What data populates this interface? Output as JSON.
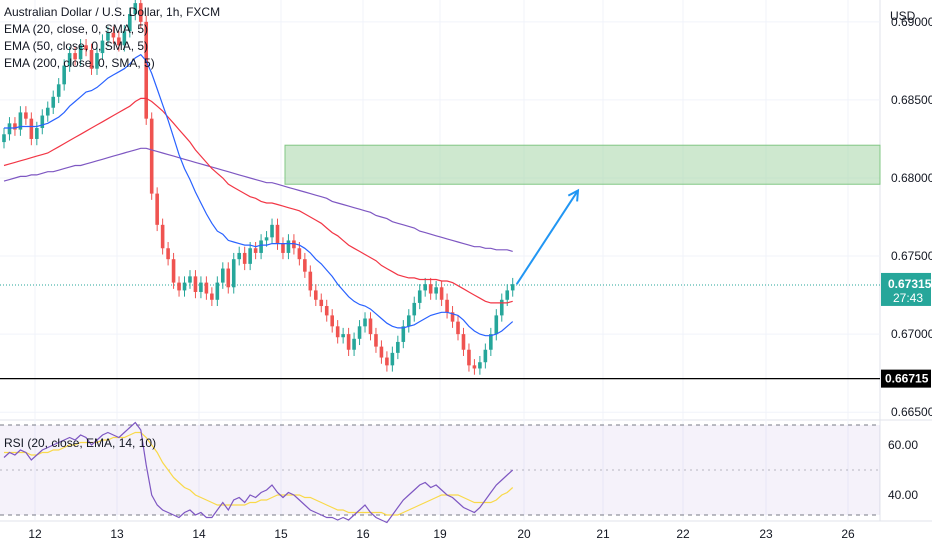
{
  "header": {
    "symbol": "Australian Dollar / U.S. Dollar, 1h, FXCM",
    "indicators": [
      "EMA (20, close, 0, SMA, 5)",
      "EMA (50, close, 0, SMA, 5)",
      "EMA (200, close, 0, SMA, 5)"
    ]
  },
  "rsi_header": "RSI (20, close, EMA, 14, 10)",
  "currency": "USD",
  "price_badge": {
    "price": "0.67315",
    "countdown": "27:43",
    "color": "#26a69a"
  },
  "support_badge": {
    "price": "0.66715",
    "color": "#000000"
  },
  "colors": {
    "up": "#26a69a",
    "down": "#ef5350",
    "ema20": "#2962ff",
    "ema50": "#f23645",
    "ema200": "#7e57c2",
    "zone": "#a5d6a7",
    "arrow": "#2196f3",
    "rsi": "#7e57c2",
    "rsi_ma": "#f9d949"
  },
  "chart_data": [
    {
      "type": "candlestick",
      "x_ticks": [
        "12",
        "13",
        "14",
        "15",
        "16",
        "19",
        "20",
        "21",
        "22",
        "23",
        "26"
      ],
      "y_ticks": [
        0.665,
        0.67,
        0.675,
        0.68,
        0.685,
        0.69
      ],
      "y_tick_labels": [
        "0.66500",
        "0.67000",
        "0.67500",
        "0.68000",
        "0.68500",
        "0.69000"
      ],
      "ylim": [
        0.6645,
        0.6914
      ],
      "close_series": [
        0.6828,
        0.6835,
        0.6831,
        0.6842,
        0.6838,
        0.6825,
        0.6832,
        0.684,
        0.6845,
        0.6852,
        0.686,
        0.6872,
        0.688,
        0.6876,
        0.6885,
        0.6882,
        0.687,
        0.688,
        0.6888,
        0.6893,
        0.689,
        0.6885,
        0.6894,
        0.6905,
        0.6912,
        0.69,
        0.6838,
        0.679,
        0.677,
        0.6755,
        0.6748,
        0.6733,
        0.6728,
        0.6733,
        0.6737,
        0.6727,
        0.6733,
        0.6726,
        0.6722,
        0.6733,
        0.6742,
        0.673,
        0.6748,
        0.6752,
        0.6745,
        0.6755,
        0.6752,
        0.676,
        0.6762,
        0.677,
        0.6758,
        0.6752,
        0.676,
        0.6755,
        0.6748,
        0.674,
        0.6728,
        0.6722,
        0.6718,
        0.6712,
        0.6705,
        0.6698,
        0.67,
        0.669,
        0.6697,
        0.6705,
        0.671,
        0.67,
        0.6692,
        0.6685,
        0.668,
        0.6688,
        0.6695,
        0.6705,
        0.6712,
        0.672,
        0.6728,
        0.6732,
        0.6726,
        0.673,
        0.6722,
        0.6714,
        0.6708,
        0.67,
        0.669,
        0.668,
        0.6678,
        0.6682,
        0.669,
        0.67,
        0.6712,
        0.6722,
        0.6728,
        0.6732
      ],
      "ema20": [
        0.6832,
        0.6832,
        0.6832,
        0.6833,
        0.6833,
        0.6833,
        0.6833,
        0.6834,
        0.6835,
        0.6837,
        0.6839,
        0.6842,
        0.6846,
        0.6849,
        0.6852,
        0.6855,
        0.6856,
        0.6858,
        0.6861,
        0.6864,
        0.6866,
        0.6868,
        0.687,
        0.6873,
        0.6877,
        0.6879,
        0.6875,
        0.6867,
        0.6857,
        0.6847,
        0.6837,
        0.6826,
        0.6815,
        0.6806,
        0.6799,
        0.6791,
        0.6784,
        0.6777,
        0.6771,
        0.6766,
        0.6764,
        0.676,
        0.6759,
        0.6758,
        0.6757,
        0.6757,
        0.6756,
        0.6757,
        0.6757,
        0.6758,
        0.6758,
        0.6758,
        0.6758,
        0.6758,
        0.6757,
        0.6755,
        0.6752,
        0.6748,
        0.6745,
        0.6741,
        0.6737,
        0.6732,
        0.6728,
        0.6724,
        0.6721,
        0.6719,
        0.6718,
        0.6716,
        0.6713,
        0.671,
        0.6707,
        0.6705,
        0.6704,
        0.6704,
        0.6705,
        0.6706,
        0.6708,
        0.671,
        0.6712,
        0.6713,
        0.6714,
        0.6714,
        0.6713,
        0.6712,
        0.6709,
        0.6705,
        0.6702,
        0.67,
        0.6699,
        0.6699,
        0.67,
        0.6702,
        0.6705,
        0.6708
      ],
      "ema50": [
        0.6808,
        0.6809,
        0.681,
        0.6811,
        0.6812,
        0.6813,
        0.6814,
        0.6815,
        0.6816,
        0.6818,
        0.682,
        0.6822,
        0.6824,
        0.6826,
        0.6828,
        0.683,
        0.6832,
        0.6834,
        0.6836,
        0.6838,
        0.684,
        0.6842,
        0.6844,
        0.6846,
        0.6849,
        0.6851,
        0.6851,
        0.6849,
        0.6846,
        0.6843,
        0.6839,
        0.6835,
        0.6831,
        0.6827,
        0.6823,
        0.6818,
        0.6814,
        0.681,
        0.6806,
        0.6803,
        0.68,
        0.6796,
        0.6794,
        0.6792,
        0.679,
        0.6788,
        0.6787,
        0.6785,
        0.6784,
        0.6784,
        0.6783,
        0.6782,
        0.6781,
        0.678,
        0.6779,
        0.6777,
        0.6775,
        0.6773,
        0.6771,
        0.6768,
        0.6765,
        0.6763,
        0.676,
        0.6757,
        0.6755,
        0.6753,
        0.6751,
        0.6749,
        0.6747,
        0.6744,
        0.6742,
        0.674,
        0.6738,
        0.6737,
        0.6736,
        0.6736,
        0.6735,
        0.6735,
        0.6735,
        0.6735,
        0.6734,
        0.6734,
        0.6733,
        0.6731,
        0.6729,
        0.6727,
        0.6725,
        0.6723,
        0.6721,
        0.672,
        0.672,
        0.672,
        0.672,
        0.6721
      ],
      "ema200": [
        0.6798,
        0.6799,
        0.68,
        0.6801,
        0.6801,
        0.6802,
        0.6802,
        0.6803,
        0.6804,
        0.6804,
        0.6805,
        0.6806,
        0.6807,
        0.6808,
        0.6808,
        0.6809,
        0.681,
        0.6811,
        0.6812,
        0.6813,
        0.6814,
        0.6815,
        0.6816,
        0.6817,
        0.6818,
        0.6819,
        0.6819,
        0.6818,
        0.6817,
        0.6816,
        0.6815,
        0.6814,
        0.6813,
        0.6812,
        0.6811,
        0.681,
        0.6809,
        0.6808,
        0.6807,
        0.6806,
        0.6805,
        0.6804,
        0.6803,
        0.6802,
        0.6801,
        0.68,
        0.6799,
        0.6798,
        0.6797,
        0.6797,
        0.6796,
        0.6795,
        0.6794,
        0.6793,
        0.6792,
        0.6791,
        0.679,
        0.6789,
        0.6788,
        0.6787,
        0.6785,
        0.6784,
        0.6783,
        0.6782,
        0.6781,
        0.678,
        0.6779,
        0.6778,
        0.6776,
        0.6775,
        0.6774,
        0.6772,
        0.6771,
        0.677,
        0.6769,
        0.6768,
        0.6766,
        0.6765,
        0.6764,
        0.6763,
        0.6762,
        0.6761,
        0.676,
        0.6759,
        0.6758,
        0.6757,
        0.6756,
        0.6756,
        0.6755,
        0.6755,
        0.6754,
        0.6754,
        0.6754,
        0.6753
      ],
      "target_zone": {
        "low": 0.6796,
        "high": 0.6821
      },
      "last_price": 0.67315,
      "support_level": 0.66715,
      "projection": {
        "from_price": 0.6732,
        "to_price": 0.6792
      }
    },
    {
      "type": "line",
      "name": "RSI",
      "y_ticks": [
        40,
        60
      ],
      "y_tick_labels": [
        "40.00",
        "60.00"
      ],
      "ylim": [
        30,
        70
      ],
      "bands": [
        32,
        68
      ],
      "rsi": [
        55,
        57,
        56,
        58,
        57,
        54,
        56,
        58,
        59,
        60,
        61,
        62,
        63,
        62,
        64,
        63,
        60,
        62,
        64,
        65,
        64,
        63,
        65,
        67,
        69,
        66,
        52,
        40,
        36,
        34,
        33,
        32,
        31,
        33,
        34,
        32,
        33,
        31,
        31,
        34,
        37,
        34,
        38,
        39,
        37,
        40,
        39,
        41,
        42,
        44,
        41,
        39,
        41,
        40,
        38,
        36,
        34,
        33,
        32,
        31,
        31,
        30,
        31,
        30,
        32,
        34,
        36,
        33,
        31,
        30,
        29,
        32,
        35,
        38,
        40,
        42,
        44,
        45,
        43,
        44,
        42,
        40,
        39,
        37,
        35,
        34,
        33,
        35,
        38,
        41,
        44,
        46,
        48,
        50
      ],
      "rsi_ma": [
        57,
        57,
        57,
        57,
        57,
        56,
        56,
        57,
        57,
        58,
        58,
        59,
        60,
        60,
        61,
        61,
        61,
        61,
        62,
        62,
        63,
        63,
        63,
        64,
        65,
        65,
        63,
        60,
        57,
        53,
        50,
        47,
        45,
        43,
        42,
        40,
        39,
        38,
        37,
        36,
        36,
        36,
        36,
        36,
        36,
        37,
        37,
        38,
        38,
        39,
        40,
        40,
        40,
        40,
        40,
        39,
        39,
        38,
        37,
        36,
        35,
        34,
        34,
        33,
        33,
        33,
        33,
        33,
        33,
        33,
        32,
        32,
        32,
        33,
        34,
        35,
        36,
        37,
        38,
        39,
        40,
        40,
        40,
        40,
        39,
        38,
        37,
        37,
        37,
        37,
        38,
        40,
        41,
        43
      ]
    }
  ]
}
